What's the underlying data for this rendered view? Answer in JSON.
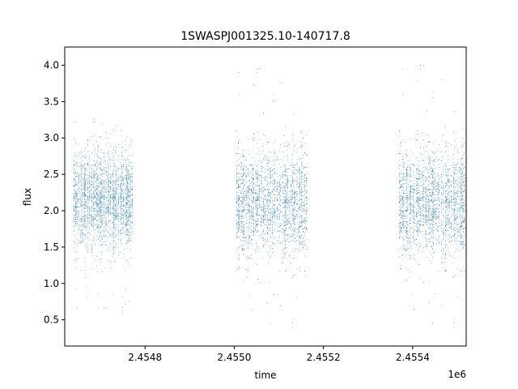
{
  "chart_data": {
    "type": "scatter",
    "title": "1SWASPJ001325.10-140717.8",
    "xlabel": "time",
    "ylabel": "flux",
    "x_offset_label": "1e6",
    "xlim": [
      2454620,
      2455520
    ],
    "ylim": [
      0.14,
      4.25
    ],
    "x_ticks": [
      {
        "value": 2454800,
        "label": "2.4548"
      },
      {
        "value": 2455000,
        "label": "2.4550"
      },
      {
        "value": 2455200,
        "label": "2.4552"
      },
      {
        "value": 2455400,
        "label": "2.4554"
      }
    ],
    "y_ticks": [
      {
        "value": 0.5,
        "label": "0.5"
      },
      {
        "value": 1.0,
        "label": "1.0"
      },
      {
        "value": 1.5,
        "label": "1.5"
      },
      {
        "value": 2.0,
        "label": "2.0"
      },
      {
        "value": 2.5,
        "label": "2.5"
      },
      {
        "value": 3.0,
        "label": "3.0"
      },
      {
        "value": 3.5,
        "label": "3.5"
      },
      {
        "value": 4.0,
        "label": "4.0"
      }
    ],
    "grid": false,
    "legend": "none",
    "marker_color": "#1f77b4",
    "series": [
      {
        "segments": [
          {
            "x_start": 2454640,
            "x_end": 2454775,
            "y_center": 2.15,
            "y_spread": 0.32,
            "y_min": 0.55,
            "y_max": 3.3
          },
          {
            "x_start": 2455005,
            "x_end": 2455165,
            "y_center": 2.1,
            "y_spread": 0.35,
            "y_min": 0.3,
            "y_max": 4.0
          },
          {
            "x_start": 2455370,
            "x_end": 2455520,
            "y_center": 2.1,
            "y_spread": 0.35,
            "y_min": 0.3,
            "y_max": 4.05
          }
        ]
      }
    ]
  }
}
